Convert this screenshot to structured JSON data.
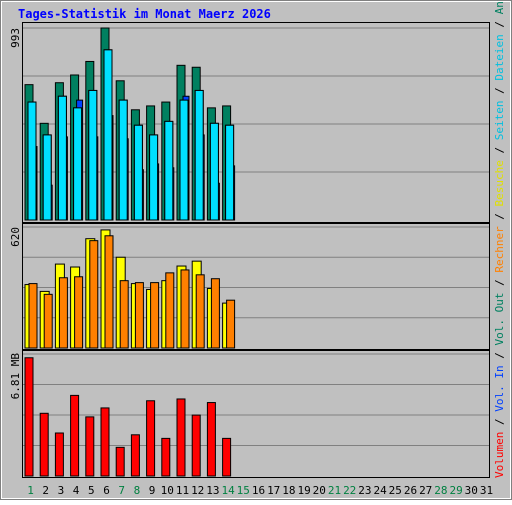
{
  "title": "Tages-Statistik im Monat Maerz 2026",
  "colors": {
    "background": "#c0c0c0",
    "title": "#0000ff",
    "anfragen": "#008060",
    "dateien": "#00e0ff",
    "seiten": "#0040ff",
    "besuche": "#ffff00",
    "rechner": "#ff8000",
    "vol_in": "#0040ff",
    "vol_out": "#ff8000",
    "volumen": "#ff0000",
    "weekday_label": "#000000",
    "weekend_label": "#008040"
  },
  "legend_right": {
    "top": [
      {
        "text": "Anfragen",
        "color": "#008060"
      },
      {
        "text": "Dateien",
        "color": "#00c0e0"
      },
      {
        "text": "Seiten",
        "color": "#00c0e0"
      },
      {
        "text": "Besuche",
        "color": "#e0e000"
      },
      {
        "text": "Rechner",
        "color": "#ff8000"
      },
      {
        "text": "Vol. Out",
        "color": "#008060"
      },
      {
        "text": "Vol. In",
        "color": "#0040ff"
      },
      {
        "text": "Volumen",
        "color": "#ff0000"
      }
    ],
    "separator": "/"
  },
  "chart_data": [
    {
      "type": "bar",
      "panel": "hits",
      "ymax_label": "993",
      "ylim": [
        0,
        993
      ],
      "categories": [
        "1",
        "2",
        "3",
        "4",
        "5",
        "6",
        "7",
        "8",
        "9",
        "10",
        "11",
        "12",
        "13",
        "14",
        "15",
        "16",
        "17",
        "18",
        "19",
        "20",
        "21",
        "22",
        "23",
        "24",
        "25",
        "26",
        "27",
        "28",
        "29",
        "30",
        "31"
      ],
      "series": [
        {
          "name": "Anfragen",
          "values": [
            700,
            500,
            710,
            750,
            820,
            993,
            720,
            570,
            590,
            610,
            800,
            790,
            580,
            590,
            0,
            0,
            0,
            0,
            0,
            0,
            0,
            0,
            0,
            0,
            0,
            0,
            0,
            0,
            0,
            0,
            0
          ]
        },
        {
          "name": "Dateien",
          "values": [
            610,
            440,
            640,
            580,
            670,
            880,
            620,
            490,
            440,
            510,
            620,
            670,
            500,
            490,
            0,
            0,
            0,
            0,
            0,
            0,
            0,
            0,
            0,
            0,
            0,
            0,
            0,
            0,
            0,
            0,
            0
          ]
        },
        {
          "name": "Seiten",
          "values": [
            380,
            180,
            430,
            620,
            430,
            540,
            420,
            260,
            290,
            270,
            640,
            440,
            190,
            280,
            0,
            0,
            0,
            0,
            0,
            0,
            0,
            0,
            0,
            0,
            0,
            0,
            0,
            0,
            0,
            0,
            0
          ]
        }
      ]
    },
    {
      "type": "bar",
      "panel": "visits",
      "ymax_label": "620",
      "ylim": [
        0,
        620
      ],
      "categories": [
        "1",
        "2",
        "3",
        "4",
        "5",
        "6",
        "7",
        "8",
        "9",
        "10",
        "11",
        "12",
        "13",
        "14",
        "15",
        "16",
        "17",
        "18",
        "19",
        "20",
        "21",
        "22",
        "23",
        "24",
        "25",
        "26",
        "27",
        "28",
        "29",
        "30",
        "31"
      ],
      "series": [
        {
          "name": "Besuche",
          "values": [
            325,
            290,
            430,
            415,
            560,
            605,
            465,
            330,
            300,
            345,
            420,
            445,
            305,
            230,
            0,
            0,
            0,
            0,
            0,
            0,
            0,
            0,
            0,
            0,
            0,
            0,
            0,
            0,
            0,
            0,
            0
          ]
        },
        {
          "name": "Rechner",
          "values": [
            330,
            275,
            360,
            365,
            550,
            575,
            345,
            335,
            335,
            385,
            400,
            375,
            355,
            245,
            0,
            0,
            0,
            0,
            0,
            0,
            0,
            0,
            0,
            0,
            0,
            0,
            0,
            0,
            0,
            0,
            0
          ]
        }
      ]
    },
    {
      "type": "bar",
      "panel": "volume",
      "ymax_label": "6.81 MB",
      "ylim": [
        0,
        6.81
      ],
      "categories": [
        "1",
        "2",
        "3",
        "4",
        "5",
        "6",
        "7",
        "8",
        "9",
        "10",
        "11",
        "12",
        "13",
        "14",
        "15",
        "16",
        "17",
        "18",
        "19",
        "20",
        "21",
        "22",
        "23",
        "24",
        "25",
        "26",
        "27",
        "28",
        "29",
        "30",
        "31"
      ],
      "series": [
        {
          "name": "Volumen",
          "values": [
            6.6,
            3.5,
            2.4,
            4.5,
            3.3,
            3.8,
            1.6,
            2.3,
            4.2,
            2.1,
            4.3,
            3.4,
            4.1,
            2.1,
            0,
            0,
            0,
            0,
            0,
            0,
            0,
            0,
            0,
            0,
            0,
            0,
            0,
            0,
            0,
            0,
            0
          ]
        }
      ]
    }
  ],
  "x_labels": [
    {
      "text": "1",
      "weekend": true
    },
    {
      "text": "2",
      "weekend": false
    },
    {
      "text": "3",
      "weekend": false
    },
    {
      "text": "4",
      "weekend": false
    },
    {
      "text": "5",
      "weekend": false
    },
    {
      "text": "6",
      "weekend": false
    },
    {
      "text": "7",
      "weekend": true
    },
    {
      "text": "8",
      "weekend": true
    },
    {
      "text": "9",
      "weekend": false
    },
    {
      "text": "10",
      "weekend": false
    },
    {
      "text": "11",
      "weekend": false
    },
    {
      "text": "12",
      "weekend": false
    },
    {
      "text": "13",
      "weekend": false
    },
    {
      "text": "14",
      "weekend": true
    },
    {
      "text": "15",
      "weekend": true
    },
    {
      "text": "16",
      "weekend": false
    },
    {
      "text": "17",
      "weekend": false
    },
    {
      "text": "18",
      "weekend": false
    },
    {
      "text": "19",
      "weekend": false
    },
    {
      "text": "20",
      "weekend": false
    },
    {
      "text": "21",
      "weekend": true
    },
    {
      "text": "22",
      "weekend": true
    },
    {
      "text": "23",
      "weekend": false
    },
    {
      "text": "24",
      "weekend": false
    },
    {
      "text": "25",
      "weekend": false
    },
    {
      "text": "26",
      "weekend": false
    },
    {
      "text": "27",
      "weekend": false
    },
    {
      "text": "28",
      "weekend": true
    },
    {
      "text": "29",
      "weekend": true
    },
    {
      "text": "30",
      "weekend": false
    },
    {
      "text": "31",
      "weekend": false
    }
  ]
}
